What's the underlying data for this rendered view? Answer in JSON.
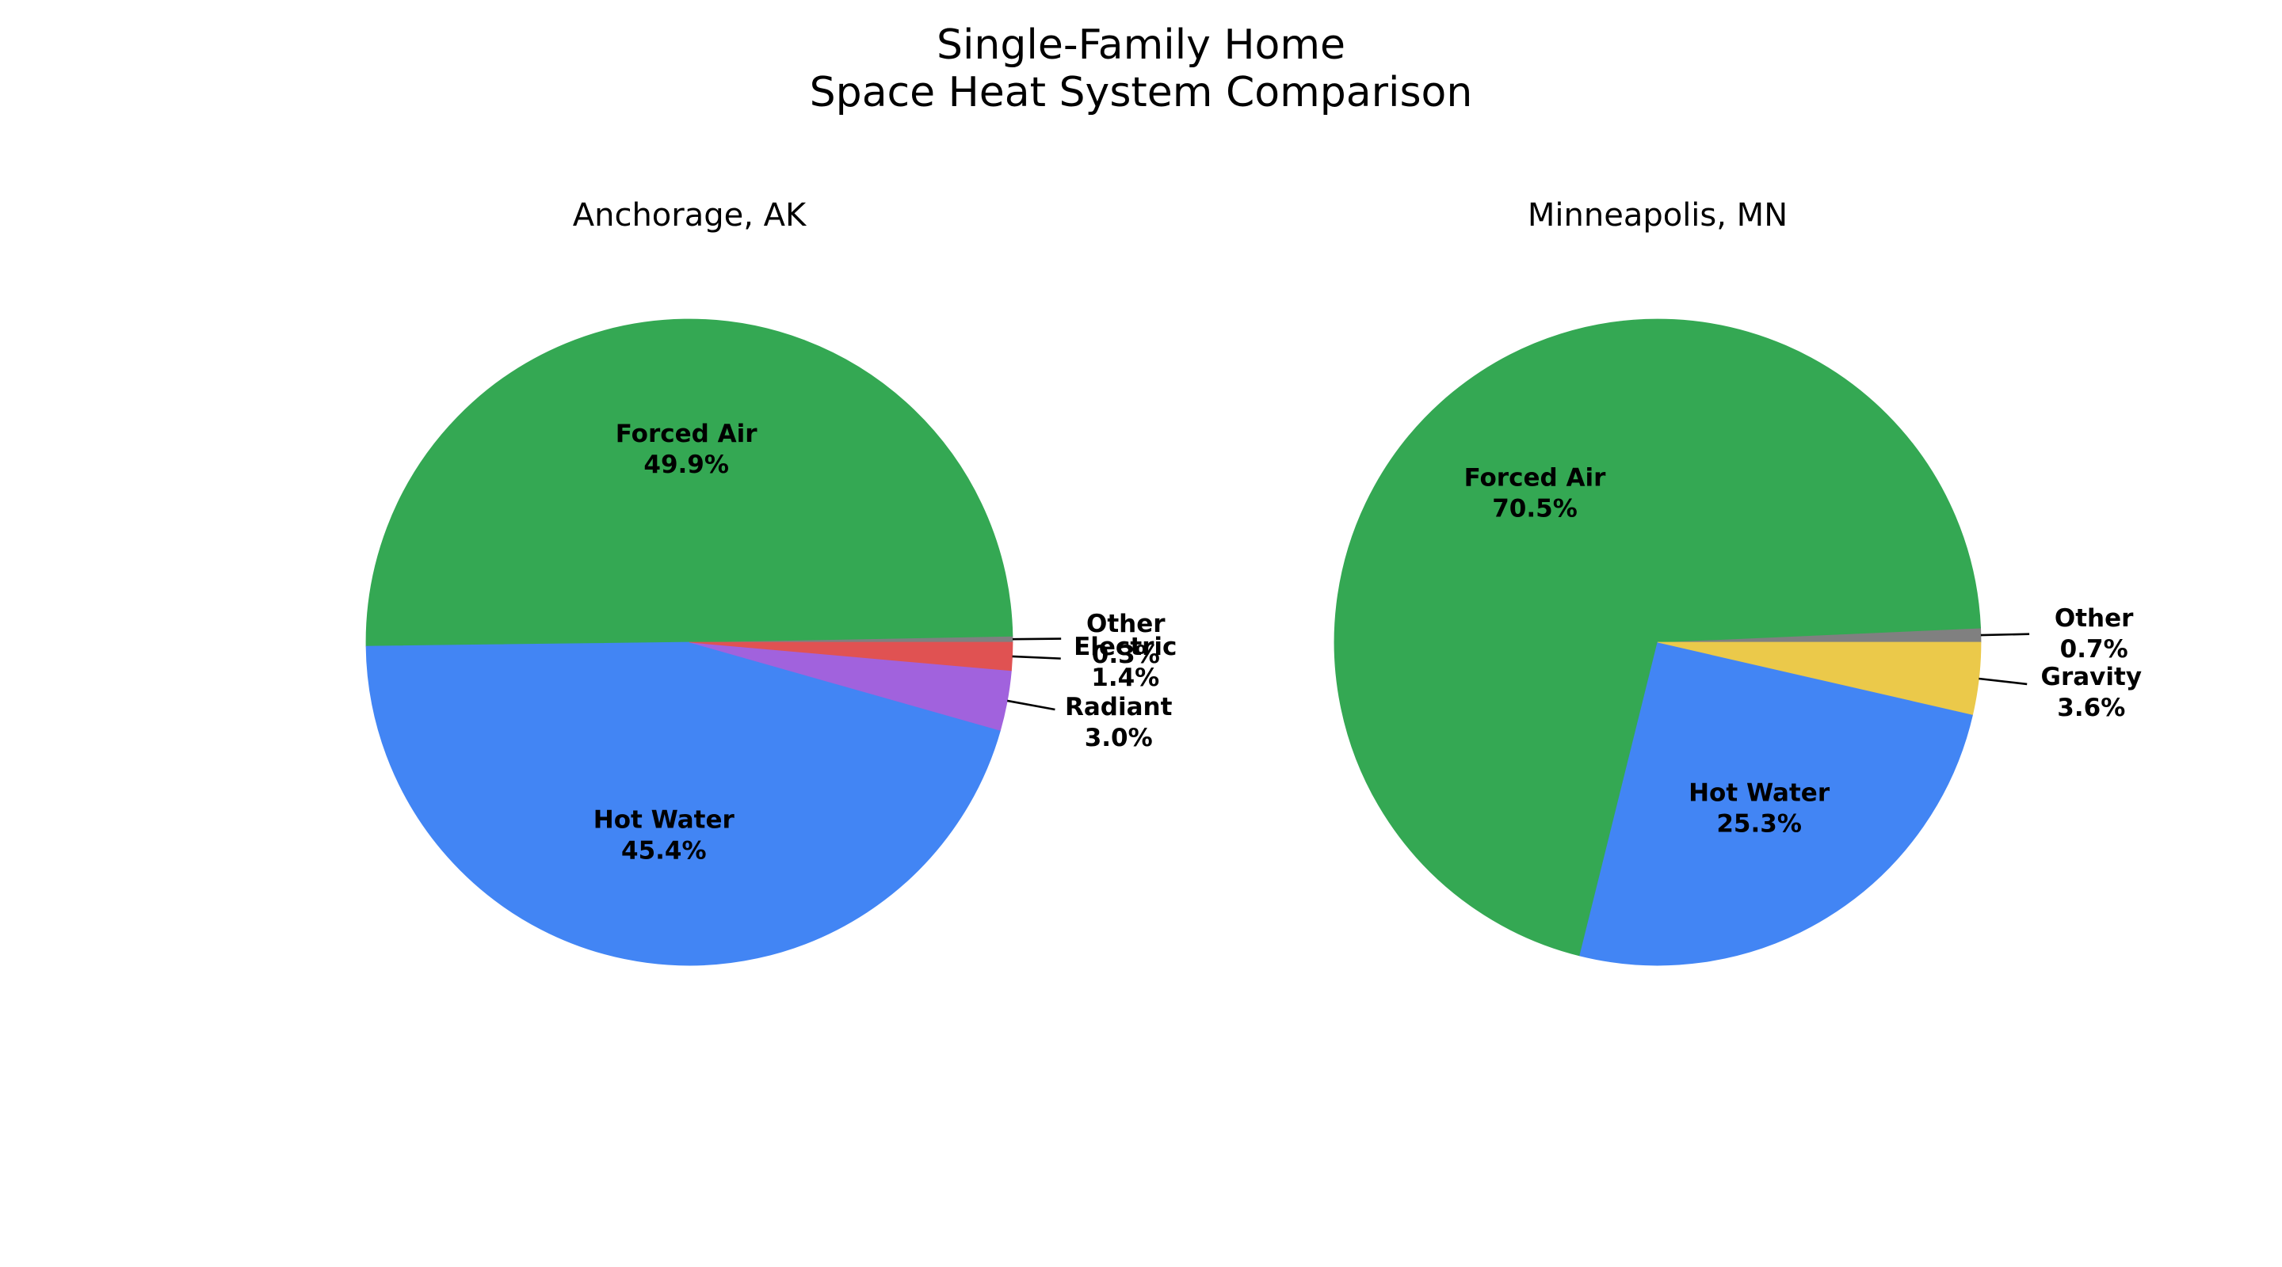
{
  "chart_data": {
    "title_line1": "Single-Family Home",
    "title_line2": "Space Heat System Comparison",
    "charts": [
      {
        "type": "pie",
        "title": "Anchorage, AK",
        "slices": [
          {
            "label": "Other",
            "value": 0.3,
            "pct_text": "0.3%",
            "color": "#808080",
            "external": true
          },
          {
            "label": "Forced Air",
            "value": 49.9,
            "pct_text": "49.9%",
            "color": "#34A853",
            "external": false
          },
          {
            "label": "Hot Water",
            "value": 45.4,
            "pct_text": "45.4%",
            "color": "#4285F4",
            "external": false
          },
          {
            "label": "Radiant",
            "value": 3.0,
            "pct_text": "3.0%",
            "color": "#A162DD",
            "external": true
          },
          {
            "label": "Electric",
            "value": 1.4,
            "pct_text": "1.4%",
            "color": "#E05252",
            "external": true
          }
        ]
      },
      {
        "type": "pie",
        "title": "Minneapolis, MN",
        "slices": [
          {
            "label": "Other",
            "value": 0.7,
            "pct_text": "0.7%",
            "color": "#808080",
            "external": true
          },
          {
            "label": "Forced Air",
            "value": 70.5,
            "pct_text": "70.5%",
            "color": "#34A853",
            "external": false
          },
          {
            "label": "Hot Water",
            "value": 25.3,
            "pct_text": "25.3%",
            "color": "#4285F4",
            "external": false
          },
          {
            "label": "Gravity",
            "value": 3.6,
            "pct_text": "3.6%",
            "color": "#EBC94A",
            "external": true
          }
        ]
      }
    ]
  }
}
